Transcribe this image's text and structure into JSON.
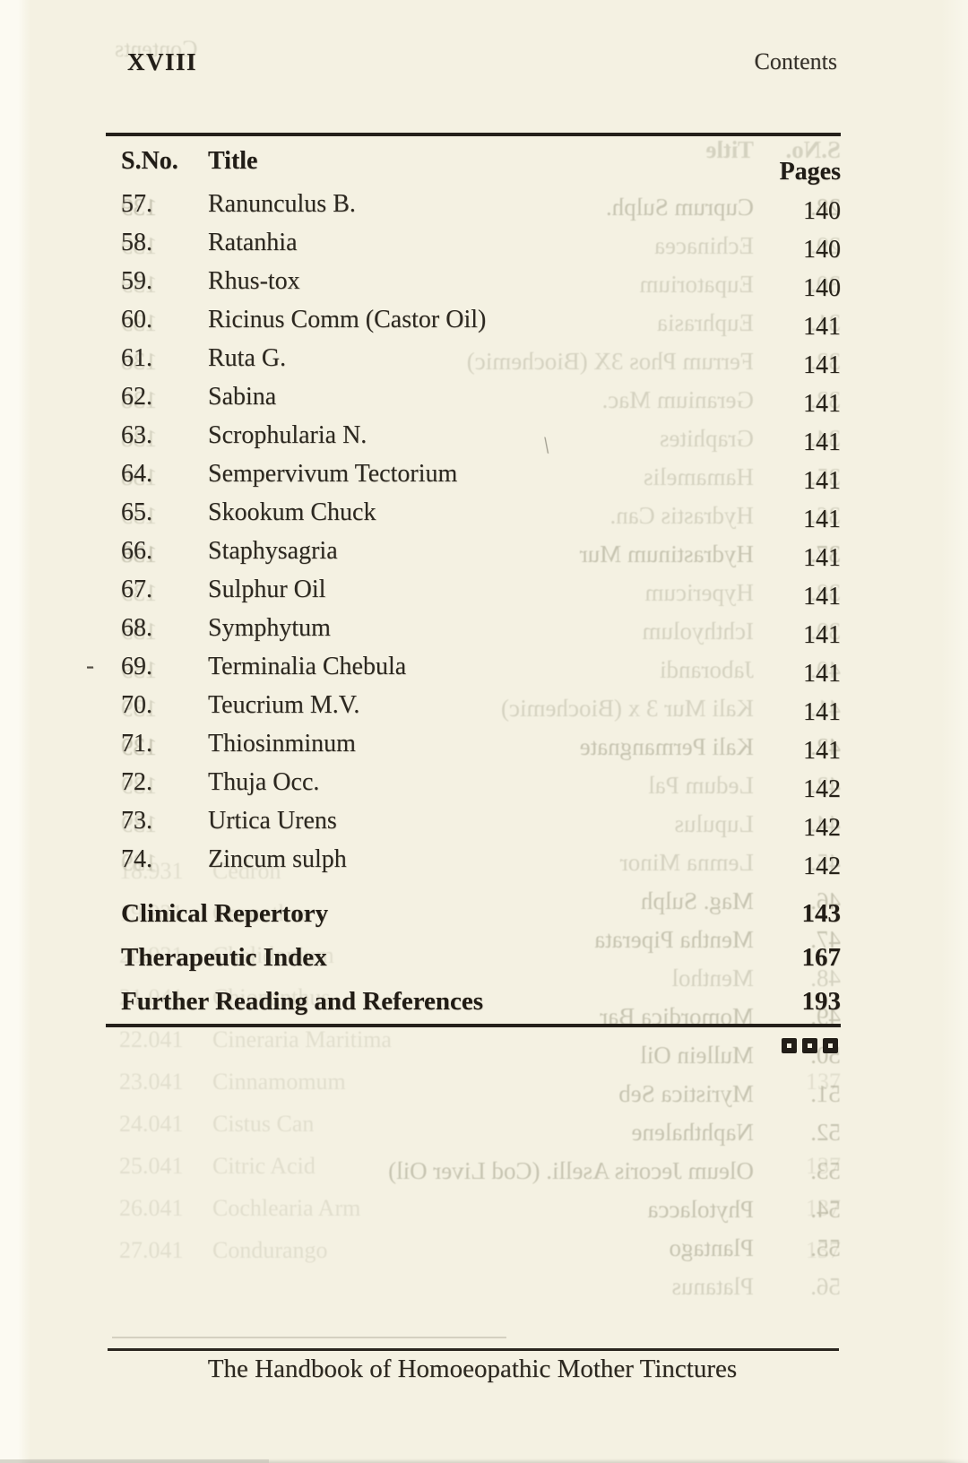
{
  "page": {
    "folio": "XVIII",
    "running_header": "Contents",
    "footer_title": "The Handbook of Homoeopathic Mother Tinctures"
  },
  "table": {
    "columns": {
      "sno": "S.No.",
      "title": "Title",
      "pages": "Pages"
    },
    "rows": [
      {
        "sno": "57.",
        "title": "Ranunculus B.",
        "page": "140"
      },
      {
        "sno": "58.",
        "title": "Ratanhia",
        "page": "140"
      },
      {
        "sno": "59.",
        "title": "Rhus-tox",
        "page": "140"
      },
      {
        "sno": "60.",
        "title": "Ricinus Comm (Castor Oil)",
        "page": "141"
      },
      {
        "sno": "61.",
        "title": "Ruta G.",
        "page": "141"
      },
      {
        "sno": "62.",
        "title": "Sabina",
        "page": "141"
      },
      {
        "sno": "63.",
        "title": "Scrophularia N.",
        "page": "141"
      },
      {
        "sno": "64.",
        "title": "Sempervivum Tectorium",
        "page": "141"
      },
      {
        "sno": "65.",
        "title": "Skookum Chuck",
        "page": "141"
      },
      {
        "sno": "66.",
        "title": "Staphysagria",
        "page": "141"
      },
      {
        "sno": "67.",
        "title": "Sulphur Oil",
        "page": "141"
      },
      {
        "sno": "68.",
        "title": "Symphytum",
        "page": "141"
      },
      {
        "sno": "69.",
        "title": "Terminalia Chebula",
        "page": "141"
      },
      {
        "sno": "70.",
        "title": "Teucrium M.V.",
        "page": "141"
      },
      {
        "sno": "71.",
        "title": "Thiosinminum",
        "page": "141"
      },
      {
        "sno": "72.",
        "title": "Thuja Occ.",
        "page": "142"
      },
      {
        "sno": "73.",
        "title": "Urtica Urens",
        "page": "142"
      },
      {
        "sno": "74.",
        "title": "Zincum sulph",
        "page": "142"
      }
    ],
    "sections": [
      {
        "title": "Clinical Repertory",
        "page": "143"
      },
      {
        "title": "Therapeutic Index",
        "page": "167"
      },
      {
        "title": "Further Reading and References",
        "page": "193"
      }
    ],
    "end_ornament": "three filled squares"
  },
  "bleed_through": {
    "running_header_mirrored": "Contents",
    "column_header_mirrored": {
      "sno": "S.No.",
      "title": "Title"
    },
    "rows_mirrored": [
      {
        "sno": "28.",
        "title": "Cuprum Sulph.",
        "page": "139",
        "strength": "g3"
      },
      {
        "sno": "29.",
        "title": "Echinacea",
        "page": "139",
        "strength": "g2"
      },
      {
        "sno": "30.",
        "title": "Eupatorium",
        "page": "139",
        "strength": "g2"
      },
      {
        "sno": "31.",
        "title": "Euphrasia",
        "page": "139",
        "strength": "g2"
      },
      {
        "sno": "32.",
        "title": "Ferrum Phos 3X (Biochemic)",
        "page": "138",
        "strength": "g2"
      },
      {
        "sno": "33.",
        "title": "Geranium Mac.",
        "page": "138",
        "strength": "g2"
      },
      {
        "sno": "34.",
        "title": "Graphites",
        "page": "138",
        "strength": "g2"
      },
      {
        "sno": "35.",
        "title": "Hamamelis",
        "page": "138",
        "strength": "g2"
      },
      {
        "sno": "36.",
        "title": "Hydrastis Can.",
        "page": "139",
        "strength": "g2"
      },
      {
        "sno": "37.",
        "title": "Hydrastinum Mur",
        "page": "138",
        "strength": "g3"
      },
      {
        "sno": "38.",
        "title": "Hypericum",
        "page": "139",
        "strength": "g2"
      },
      {
        "sno": "39.",
        "title": "Ichthyolum",
        "page": "139",
        "strength": "g2"
      },
      {
        "sno": "40.",
        "title": "Jaborandi",
        "page": "139",
        "strength": "g2"
      },
      {
        "sno": "41.",
        "title": "Kali Mur 3 x (Biochemic)",
        "page": "139",
        "strength": "g2"
      },
      {
        "sno": "42.",
        "title": "Kali Permangnate",
        "page": "139",
        "strength": "g3"
      },
      {
        "sno": "43.",
        "title": "Ledum Pal",
        "page": "139",
        "strength": "g2"
      },
      {
        "sno": "44.",
        "title": "Lupulus",
        "page": "139",
        "strength": "g2"
      },
      {
        "sno": "45.",
        "title": "Lemna Minor",
        "page": "139",
        "strength": "g2"
      },
      {
        "sno": "46.",
        "title": "Mag. Sulph",
        "page": "",
        "strength": "g3"
      },
      {
        "sno": "47.",
        "title": "Mentha Piperata",
        "page": "",
        "strength": "g3"
      },
      {
        "sno": "48.",
        "title": "Menthol",
        "page": "",
        "strength": "g2"
      },
      {
        "sno": "49.",
        "title": "Momordica Bar",
        "page": "",
        "strength": "g3"
      },
      {
        "sno": "50.",
        "title": "Mullein Oil",
        "page": "",
        "strength": "g3"
      },
      {
        "sno": "51.",
        "title": "Myristica Seb",
        "page": "",
        "strength": "g3"
      },
      {
        "sno": "52.",
        "title": "Naphthalene",
        "page": "",
        "strength": "g3"
      },
      {
        "sno": "53.",
        "title": "Oleum Jecoris Aselli. (Cod Liver Oil)",
        "page": "",
        "strength": "g3"
      },
      {
        "sno": "54.",
        "title": "Phytolacca",
        "page": "",
        "strength": "g3"
      },
      {
        "sno": "55.",
        "title": "Plantago",
        "page": "",
        "strength": "g3"
      },
      {
        "sno": "56.",
        "title": "Platanus",
        "page": "",
        "strength": "g2"
      }
    ],
    "second_layer": [
      {
        "pre": "18.931",
        "title": "Cedron",
        "pg": ""
      },
      {
        "pre": "19.931",
        "title": "Ceanothus",
        "pg": ""
      },
      {
        "pre": "20.931",
        "title": "Chelidonium",
        "pg": ""
      },
      {
        "pre": "21.041",
        "title": "Chionanthus",
        "pg": ""
      },
      {
        "pre": "22.041",
        "title": "Cineraria Maritima",
        "pg": ""
      },
      {
        "pre": "23.041",
        "title": "Cinnamomum",
        "pg": "137"
      },
      {
        "pre": "24.041",
        "title": "Cistus Can",
        "pg": ""
      },
      {
        "pre": "25.041",
        "title": "Citric Acid",
        "pg": "137"
      },
      {
        "pre": "26.041",
        "title": "Cochlearia Arm",
        "pg": "137"
      },
      {
        "pre": "27.041",
        "title": "Condurango",
        "pg": "137"
      }
    ]
  },
  "stray_marks": {
    "dash": "-",
    "slash": "\\"
  }
}
